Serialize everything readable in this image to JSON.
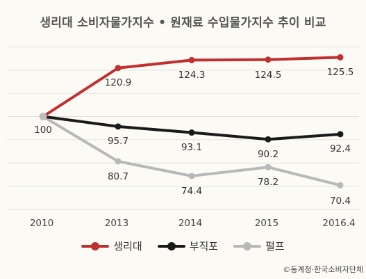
{
  "chart_data": {
    "type": "line",
    "title": "생리대 소비자물가지수 • 원재료 수입물가지수 추이 비교",
    "categories": [
      "2010",
      "2013",
      "2014",
      "2015",
      "2016.4"
    ],
    "series": [
      {
        "name": "생리대",
        "color": "#c0302f",
        "values": [
          100,
          120.9,
          124.3,
          124.5,
          125.5
        ]
      },
      {
        "name": "부직포",
        "color": "#1a1a1a",
        "values": [
          100,
          95.7,
          93.1,
          90.2,
          92.4
        ]
      },
      {
        "name": "펄프",
        "color": "#b8b8b8",
        "values": [
          100,
          80.7,
          74.4,
          78.2,
          70.4
        ]
      }
    ],
    "data_labels": [
      {
        "x": "2010",
        "value": "100"
      },
      {
        "x": "2013",
        "value": "120.9"
      },
      {
        "x": "2014",
        "value": "124.3"
      },
      {
        "x": "2015",
        "value": "124.5"
      },
      {
        "x": "2016.4",
        "value": "125.5"
      },
      {
        "x": "2013",
        "value": "95.7"
      },
      {
        "x": "2014",
        "value": "93.1"
      },
      {
        "x": "2015",
        "value": "90.2"
      },
      {
        "x": "2016.4",
        "value": "92.4"
      },
      {
        "x": "2013",
        "value": "80.7"
      },
      {
        "x": "2014",
        "value": "74.4"
      },
      {
        "x": "2015",
        "value": "78.2"
      },
      {
        "x": "2016.4",
        "value": "70.4"
      }
    ],
    "ylim": [
      60,
      140
    ],
    "y_gridlines": [
      60,
      70,
      80,
      90,
      100,
      110,
      120,
      130
    ],
    "grid": true,
    "legend_position": "bottom"
  },
  "source": "©동계청·한국소비자단체"
}
